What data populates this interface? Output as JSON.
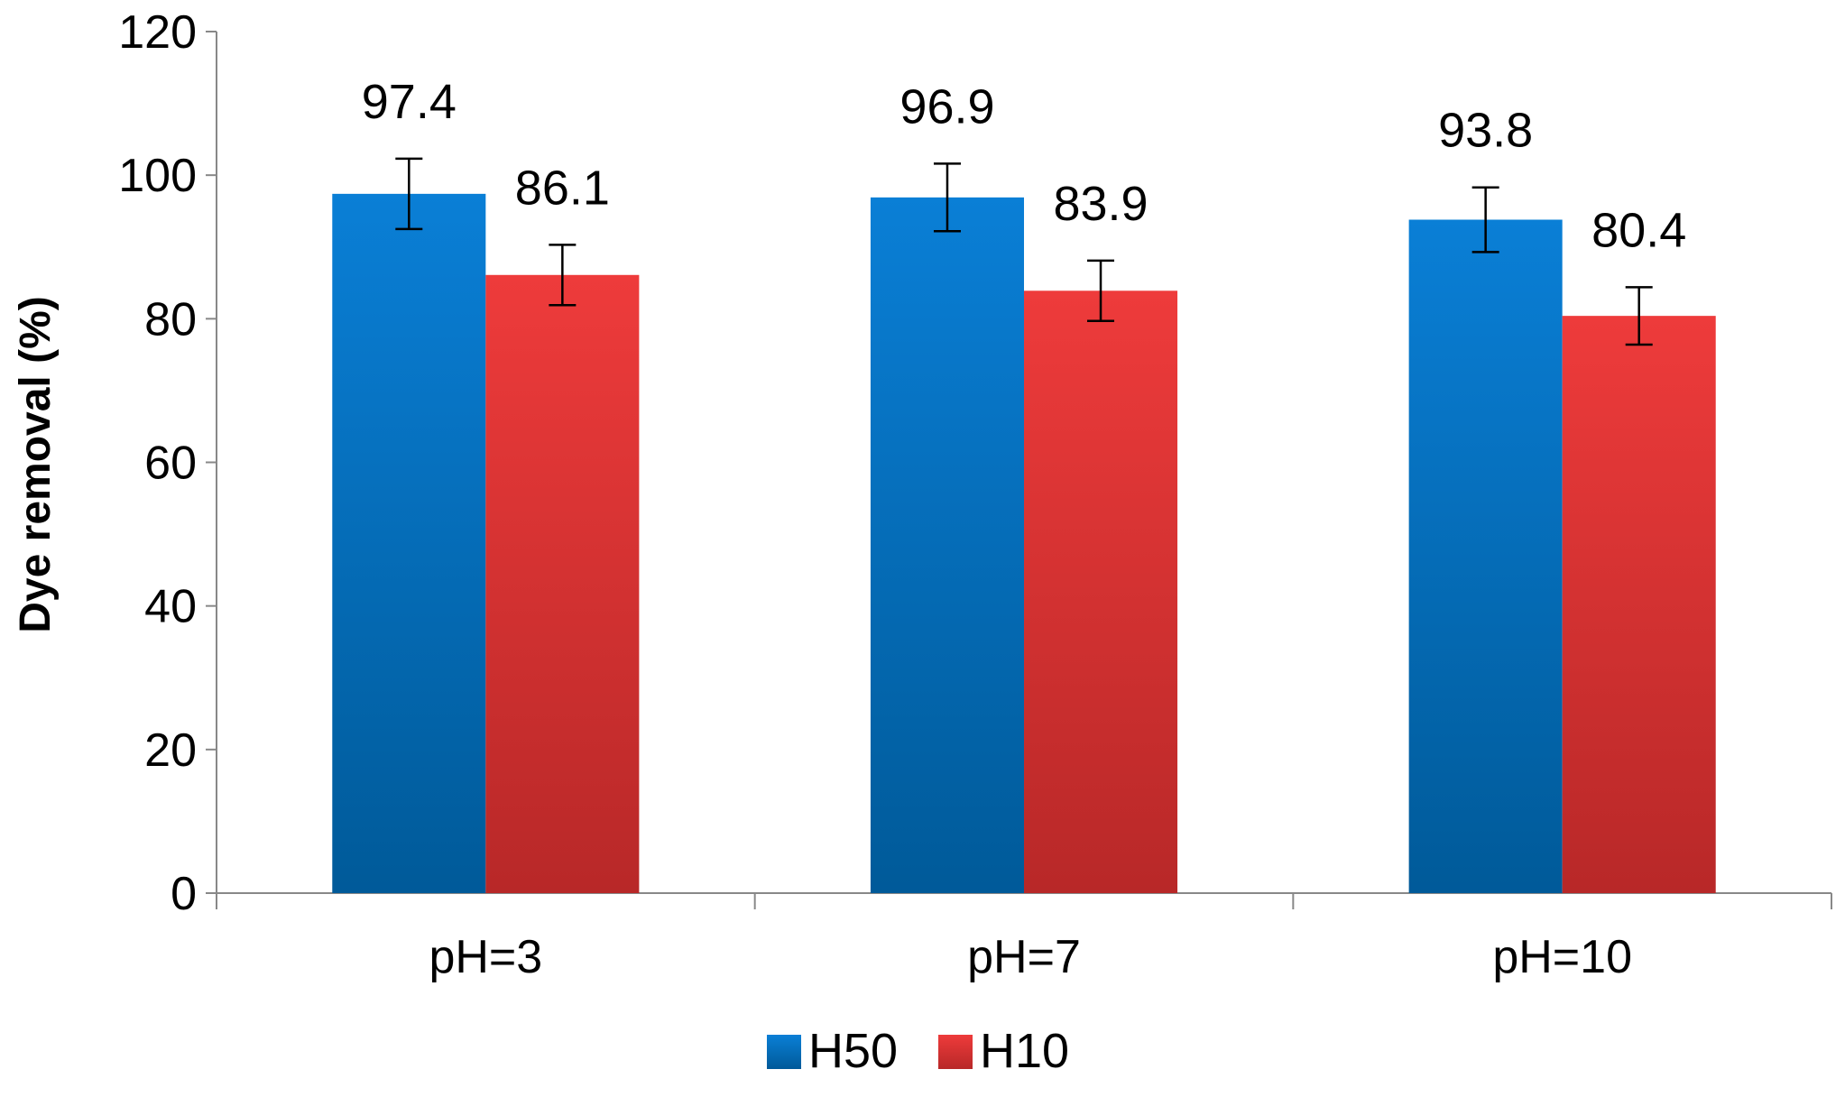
{
  "chart_data": {
    "type": "bar",
    "title": "",
    "xlabel": "",
    "ylabel": "Dye removal (%)",
    "ylim": [
      0,
      120
    ],
    "yticks": [
      0,
      20,
      40,
      60,
      80,
      100,
      120
    ],
    "categories": [
      "pH=3",
      "pH=7",
      "pH=10"
    ],
    "series": [
      {
        "name": "H50",
        "values": [
          97.4,
          96.9,
          93.8
        ],
        "errors": [
          4.9,
          4.7,
          4.5
        ],
        "color_top": "#0a7fd6",
        "color_bottom": "#005a99"
      },
      {
        "name": "H10",
        "values": [
          86.1,
          83.9,
          80.4
        ],
        "errors": [
          4.2,
          4.2,
          4.0
        ],
        "color_top": "#ee3b3b",
        "color_bottom": "#b82828"
      }
    ],
    "data_labels": true,
    "error_bars": true,
    "grid": false,
    "legend_position": "bottom"
  }
}
